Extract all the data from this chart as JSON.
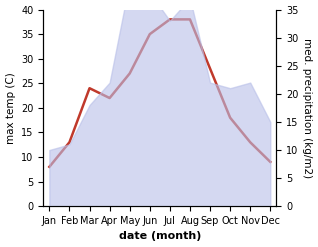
{
  "months": [
    "Jan",
    "Feb",
    "Mar",
    "Apr",
    "May",
    "Jun",
    "Jul",
    "Aug",
    "Sep",
    "Oct",
    "Nov",
    "Dec"
  ],
  "max_temp": [
    8,
    13,
    24,
    22,
    27,
    35,
    38,
    38,
    28,
    18,
    13,
    9
  ],
  "precipitation": [
    10,
    11,
    18,
    22,
    40,
    38,
    33,
    37,
    22,
    21,
    22,
    15
  ],
  "precip_color": "#c0392b",
  "fill_color": "#b8bfe8",
  "fill_alpha": 0.6,
  "left_ylim": [
    0,
    40
  ],
  "right_ylim": [
    0,
    35
  ],
  "xlabel": "date (month)",
  "ylabel_left": "max temp (C)",
  "ylabel_right": "med. precipitation (kg/m2)",
  "bg_color": "#ffffff",
  "tick_fontsize": 7,
  "label_fontsize": 7.5,
  "xlabel_fontsize": 8
}
